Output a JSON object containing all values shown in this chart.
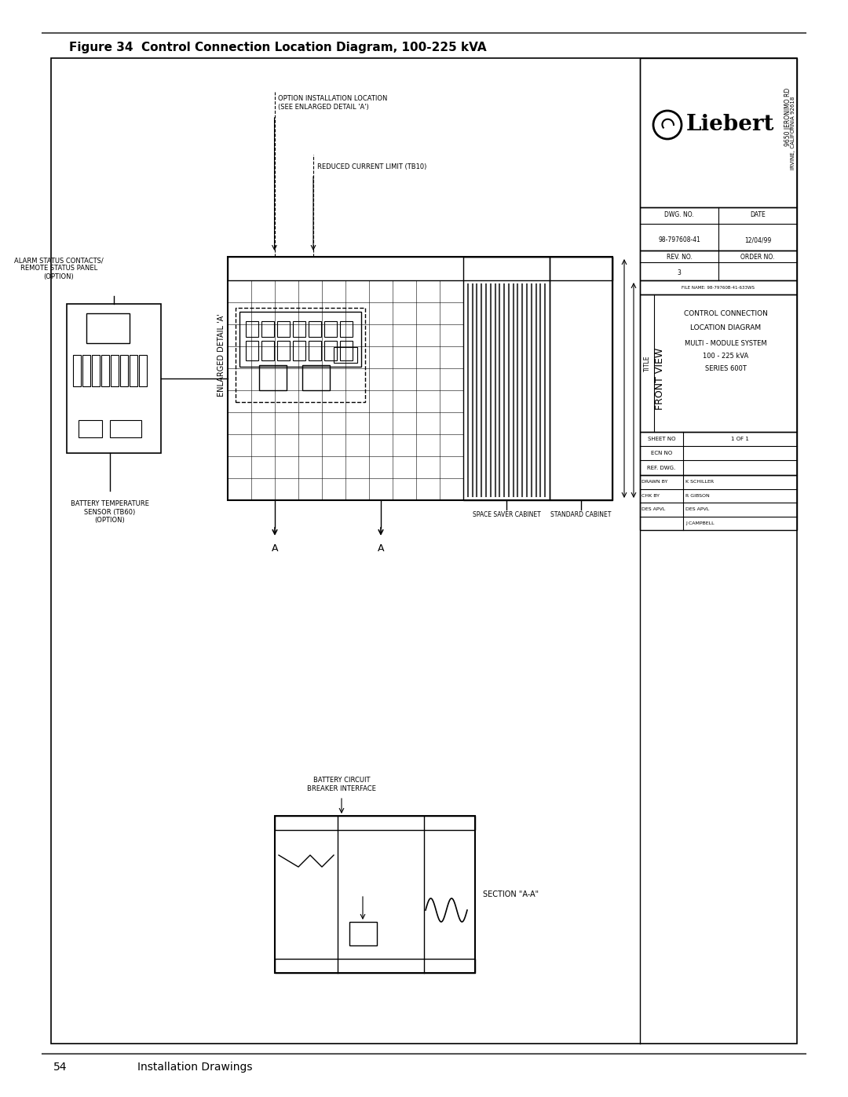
{
  "page_title": "Figure 34  Control Connection Location Diagram, 100-225 kVA",
  "footer_left_num": "54",
  "footer_left_text": "Installation Drawings",
  "bg_color": "#ffffff",
  "title_block": {
    "company": "Liebert",
    "address1": "9650 JERONIMO RD",
    "address2": "IRVINE, CALIFORNIA 92618",
    "dwg_no": "98-797608-41",
    "date": "12/04/99",
    "rev_no": "3",
    "order_no": "",
    "file_name": "FILE NAME: 98-79760B-41-633WS",
    "title_line1": "CONTROL CONNECTION",
    "title_line2": "LOCATION DIAGRAM",
    "title_line3": "MULTI - MODULE SYSTEM",
    "title_line4": "100 - 225 kVA",
    "title_line5": "SERIES 600T",
    "drawn_by": "K SCHILLER",
    "chk_by": "R GIBSON",
    "des_apvl": "DES APVL",
    "j_campbell": "J CAMPBELL",
    "sheet_no": "1 OF 1",
    "ecn_no": "",
    "ref_dwg": ""
  },
  "labels": {
    "alarm_status": "ALARM STATUS CONTACTS/\nREMOTE STATUS PANEL\n(OPTION)",
    "battery_temp": "BATTERY TEMPERATURE\nSENSOR (TB60)\n(OPTION)",
    "battery_circuit": "BATTERY CIRCUIT\nBREAKER INTERFACE",
    "option_install_1": "OPTION INSTALLATION LOCATION",
    "option_install_2": "(SEE ENLARGED DETAIL 'A')",
    "reduced_current": "REDUCED CURRENT LIMIT (TB10)",
    "enlarged_detail": "ENLARGED DETAIL 'A'",
    "front_view": "FRONT VIEW",
    "space_saver": "SPACE SAVER CABINET",
    "standard_cabinet": "STANDARD CABINET",
    "section_aa": "SECTION \"A-A\"",
    "section_mark": "A"
  }
}
